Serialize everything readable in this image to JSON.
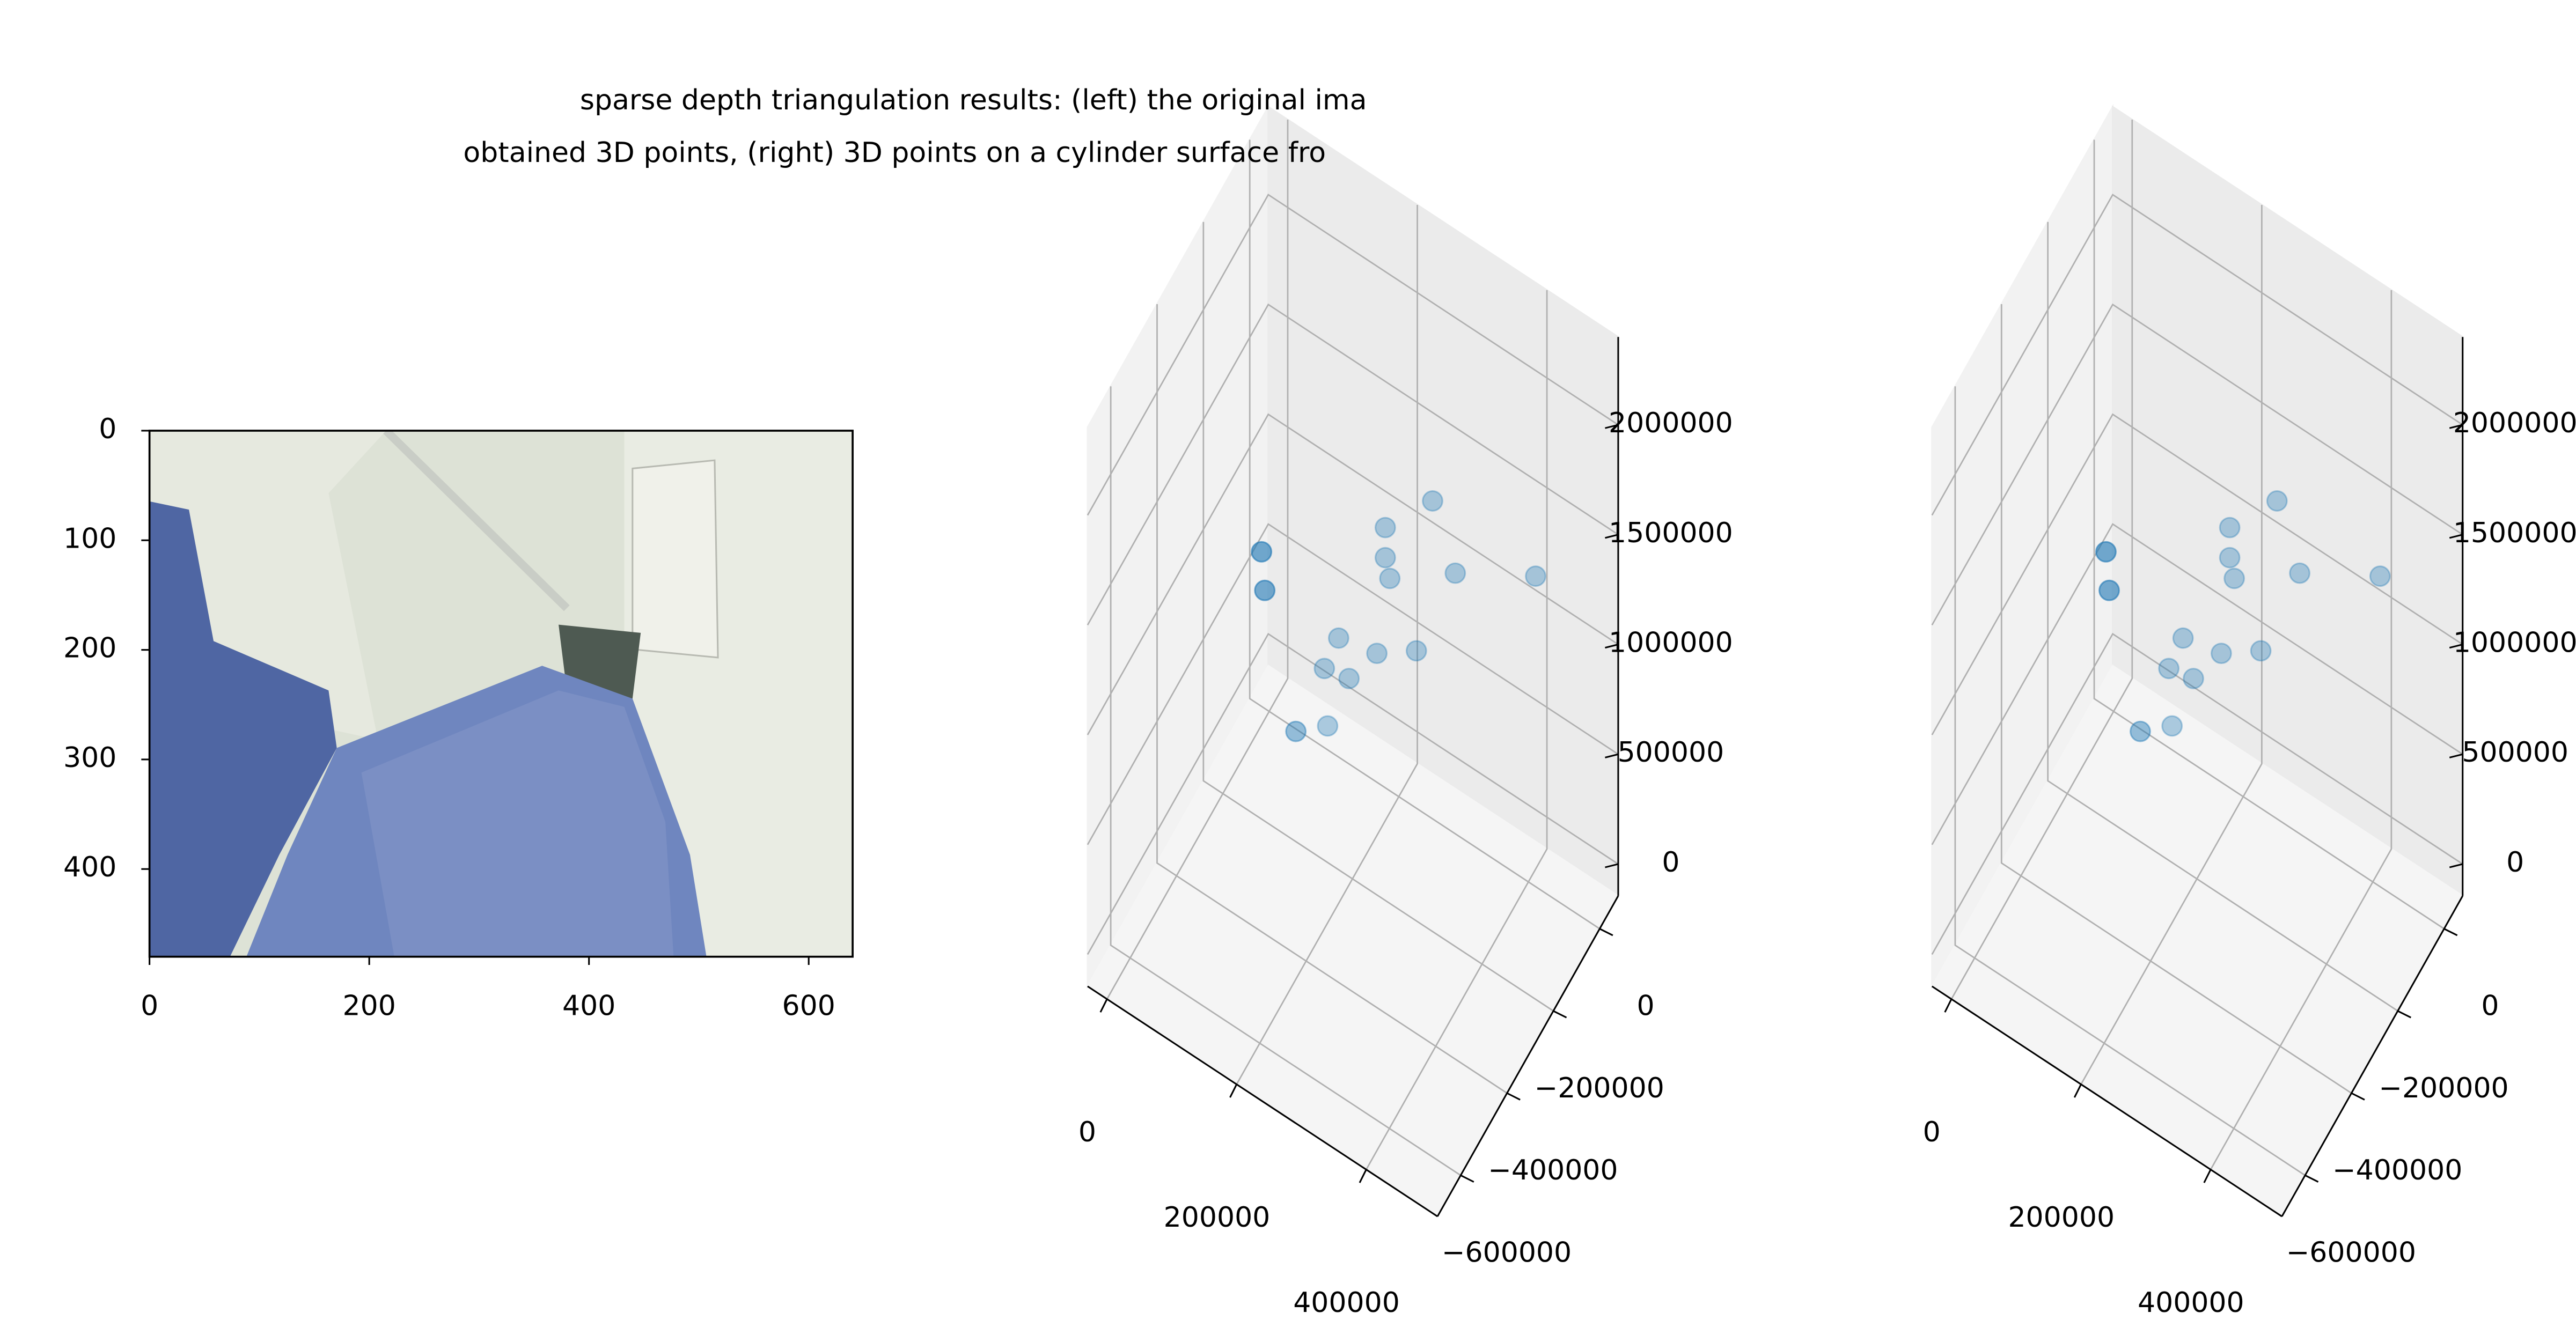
{
  "title": [
    "sparse depth triangulation results: (left) the original ima",
    "obtained 3D points, (right) 3D points on a cylinder surface fro"
  ],
  "chart_data": [
    {
      "type": "image",
      "xlim": [
        0,
        640
      ],
      "ylim": [
        480,
        0
      ],
      "xticks": [
        0,
        200,
        400,
        600
      ],
      "yticks": [
        0,
        100,
        200,
        300,
        400
      ]
    },
    {
      "type": "scatter3d",
      "color": "#1f77b4",
      "xlim": [
        -30000,
        510000
      ],
      "ylim": [
        -700000,
        80000
      ],
      "zlim": [
        -145000,
        2400000
      ],
      "xticks": [
        0,
        200000,
        400000
      ],
      "yticks": [
        0,
        {
          "value": -200000,
          "label": "−200000"
        },
        {
          "value": -400000,
          "label": "−400000"
        },
        {
          "value": -600000,
          "label": "−600000"
        }
      ],
      "zticks": [
        0,
        500000,
        1000000,
        1500000,
        2000000
      ],
      "x": [
        99000,
        104000,
        152000,
        201000,
        196000,
        218000,
        234000,
        277000,
        290000,
        290000,
        297000,
        338000,
        363000,
        398000,
        522000
      ],
      "y": [
        -310000,
        -310000,
        -310000,
        -310000,
        -310000,
        -310000,
        -310000,
        -310000,
        -310000,
        -310000,
        -310000,
        -310000,
        -310000,
        -310000,
        -310000
      ],
      "z": [
        1354000,
        1188000,
        639000,
        759000,
        1011000,
        1192000,
        1039000,
        1237000,
        1835000,
        1698000,
        1617000,
        1367000,
        2098000,
        1837000,
        2064000
      ]
    },
    {
      "type": "scatter3d",
      "color": "#1f77b4",
      "xlim": [
        -30000,
        510000
      ],
      "ylim": [
        -700000,
        80000
      ],
      "zlim": [
        -145000,
        2400000
      ],
      "xticks": [
        0,
        200000,
        400000
      ],
      "yticks": [
        0,
        {
          "value": -200000,
          "label": "−200000"
        },
        {
          "value": -400000,
          "label": "−400000"
        },
        {
          "value": -600000,
          "label": "−600000"
        }
      ],
      "zticks": [
        0,
        500000,
        1000000,
        1500000,
        2000000
      ],
      "x": [
        99000,
        104000,
        152000,
        201000,
        196000,
        218000,
        234000,
        277000,
        290000,
        290000,
        297000,
        338000,
        363000,
        398000,
        522000
      ],
      "y": [
        -310000,
        -310000,
        -310000,
        -310000,
        -310000,
        -310000,
        -310000,
        -310000,
        -310000,
        -310000,
        -310000,
        -310000,
        -310000,
        -310000,
        -310000
      ],
      "z": [
        1354000,
        1188000,
        639000,
        759000,
        1011000,
        1192000,
        1039000,
        1237000,
        1835000,
        1698000,
        1617000,
        1367000,
        2098000,
        1837000,
        2064000
      ]
    }
  ]
}
